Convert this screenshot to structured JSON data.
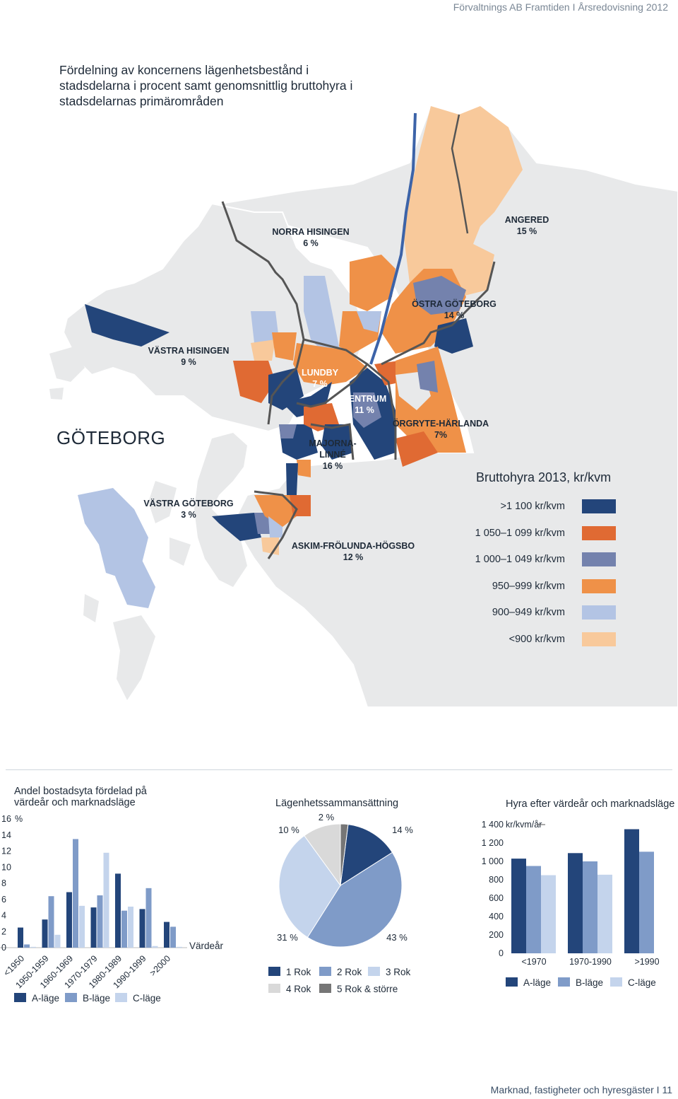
{
  "header": {
    "text": "Förvaltnings AB Framtiden I Årsredovisning 2012"
  },
  "map": {
    "title": "Fördelning av koncernens lägenhetsbestånd i stadsdelarna i procent samt genomsnittlig bruttohyra i stadsdelarnas primärområden",
    "city": "GÖTEBORG",
    "districts": [
      {
        "name": "NORRA HISINGEN",
        "share": "6 %"
      },
      {
        "name": "ANGERED",
        "share": "15 %"
      },
      {
        "name": "ÖSTRA GÖTEBORG",
        "share": "14 %"
      },
      {
        "name": "VÄSTRA HISINGEN",
        "share": "9 %"
      },
      {
        "name": "LUNDBY",
        "share": "7 %"
      },
      {
        "name": "CENTRUM",
        "share": "11 %"
      },
      {
        "name": "ÖRGRYTE-HÄRLANDA",
        "share": "7%"
      },
      {
        "name": "MAJORNA-",
        "name2": "LINNÉ",
        "share": "16 %"
      },
      {
        "name": "VÄSTRA GÖTEBORG",
        "share": "3 %"
      },
      {
        "name": "ASKIM-FRÖLUNDA-HÖGSBO",
        "share": "12 %"
      }
    ],
    "legend": {
      "title": "Bruttohyra 2013, kr/kvm",
      "items": [
        {
          "label": ">1 100 kr/kvm",
          "color": "#23457a"
        },
        {
          "label": "1 050–1 099 kr/kvm",
          "color": "#e06a33"
        },
        {
          "label": "1 000–1 049 kr/kvm",
          "color": "#7482ad"
        },
        {
          "label": "950–999 kr/kvm",
          "color": "#ef9148"
        },
        {
          "label": "900–949 kr/kvm",
          "color": "#b3c4e4"
        },
        {
          "label": "<900 kr/kvm",
          "color": "#f8c99b"
        }
      ]
    }
  },
  "chart_data": [
    {
      "type": "bar",
      "title": "Andel bostadsyta fördelad på värdeår och marknadsläge",
      "ylabel": "%",
      "xlabel": "Värdeår",
      "ylim": [
        0,
        16
      ],
      "yticks": [
        "16",
        "14",
        "12",
        "10",
        "8",
        "6",
        "4",
        "2",
        "0"
      ],
      "categories": [
        "<1950",
        "1950-1959",
        "1960-1969",
        "1970-1979",
        "1980-1989",
        "1990-1999",
        ">2000"
      ],
      "series": [
        {
          "name": "A-läge",
          "color": "#23457a",
          "values": [
            2.5,
            3.5,
            6.9,
            5.0,
            9.2,
            4.8,
            3.2
          ]
        },
        {
          "name": "B-läge",
          "color": "#7f9bc8",
          "values": [
            0.4,
            6.4,
            13.5,
            6.5,
            4.6,
            7.4,
            2.6
          ]
        },
        {
          "name": "C-läge",
          "color": "#c4d4ec",
          "values": [
            0.1,
            1.6,
            5.2,
            11.8,
            5.1,
            0.2,
            0.1
          ]
        }
      ]
    },
    {
      "type": "pie",
      "title": "Lägenhetssammansättning",
      "categories": [
        "1 Rok",
        "2 Rok",
        "3 Rok",
        "4 Rok",
        "5 Rok & större"
      ],
      "values": [
        14,
        43,
        31,
        10,
        2
      ],
      "labels": [
        "14 %",
        "43 %",
        "31 %",
        "10 %",
        "2 %"
      ],
      "colors": [
        "#23457a",
        "#7f9bc8",
        "#c4d4ec",
        "#d9d9d9",
        "#767676"
      ]
    },
    {
      "type": "bar",
      "title": "Hyra efter värdeår och marknadsläge",
      "ylabel": "kr/kvm/år",
      "ylim": [
        0,
        1400
      ],
      "yticks": [
        "1 400",
        "1 200",
        "1 000",
        "800",
        "600",
        "400",
        "200",
        "0"
      ],
      "categories": [
        "<1970",
        "1970-1990",
        ">1990"
      ],
      "series": [
        {
          "name": "A-läge",
          "color": "#23457a",
          "values": [
            1030,
            1090,
            1350
          ]
        },
        {
          "name": "B-läge",
          "color": "#7f9bc8",
          "values": [
            950,
            1000,
            1105
          ]
        },
        {
          "name": "C-läge",
          "color": "#c4d4ec",
          "values": [
            850,
            855,
            0
          ]
        }
      ]
    }
  ],
  "footer": {
    "text": "Marknad, fastigheter och hyresgäster I 11"
  }
}
